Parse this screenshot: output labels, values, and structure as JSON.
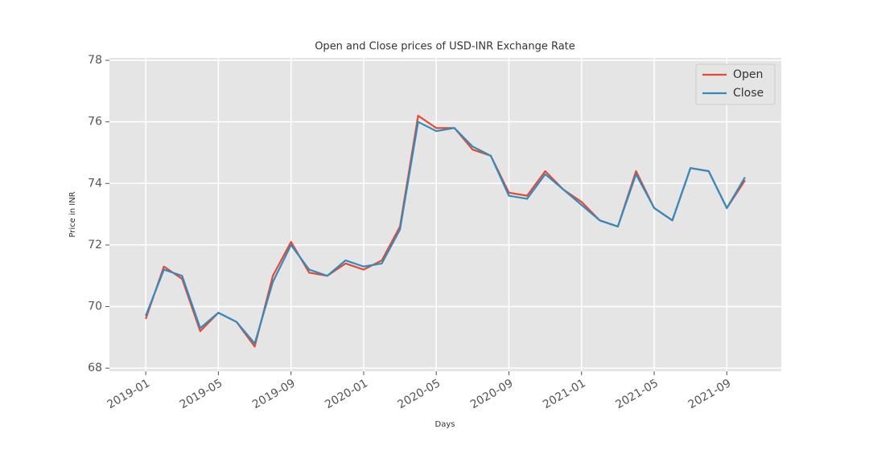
{
  "chart_data": {
    "type": "line",
    "title": "Open and Close prices of USD-INR Exchange Rate",
    "xlabel": "Days",
    "ylabel": "Price in INR",
    "x": [
      "2019-01",
      "2019-02",
      "2019-03",
      "2019-04",
      "2019-05",
      "2019-06",
      "2019-07",
      "2019-08",
      "2019-09",
      "2019-10",
      "2019-11",
      "2019-12",
      "2020-01",
      "2020-02",
      "2020-03",
      "2020-04",
      "2020-05",
      "2020-06",
      "2020-07",
      "2020-08",
      "2020-09",
      "2020-10",
      "2020-11",
      "2020-12",
      "2021-01",
      "2021-02",
      "2021-03",
      "2021-04",
      "2021-05",
      "2021-06",
      "2021-07",
      "2021-08",
      "2021-09",
      "2021-10"
    ],
    "series": [
      {
        "name": "Open",
        "color": "#e24a33",
        "values": [
          69.6,
          71.3,
          70.9,
          69.2,
          69.8,
          69.5,
          68.7,
          71.0,
          72.1,
          71.1,
          71.0,
          71.4,
          71.2,
          71.5,
          72.6,
          76.2,
          75.8,
          75.8,
          75.1,
          74.9,
          73.7,
          73.6,
          74.4,
          73.8,
          73.4,
          72.8,
          72.6,
          74.4,
          73.2,
          72.8,
          74.5,
          74.4,
          73.2,
          74.1
        ]
      },
      {
        "name": "Close",
        "color": "#348abd",
        "values": [
          69.7,
          71.2,
          71.0,
          69.3,
          69.8,
          69.5,
          68.8,
          70.8,
          72.0,
          71.2,
          71.0,
          71.5,
          71.3,
          71.4,
          72.5,
          76.0,
          75.7,
          75.8,
          75.2,
          74.9,
          73.6,
          73.5,
          74.3,
          73.8,
          73.3,
          72.8,
          72.6,
          74.3,
          73.2,
          72.8,
          74.5,
          74.4,
          73.2,
          74.2
        ]
      }
    ],
    "xlim": [
      "2018-11",
      "2021-12"
    ],
    "xticks": [
      "2019-01",
      "2019-05",
      "2019-09",
      "2020-01",
      "2020-05",
      "2020-09",
      "2021-01",
      "2021-05",
      "2021-09"
    ],
    "ylim": [
      67.9,
      78.08
    ],
    "yticks": [
      68,
      70,
      72,
      74,
      76,
      78
    ],
    "grid": true,
    "legend": "upper right"
  }
}
